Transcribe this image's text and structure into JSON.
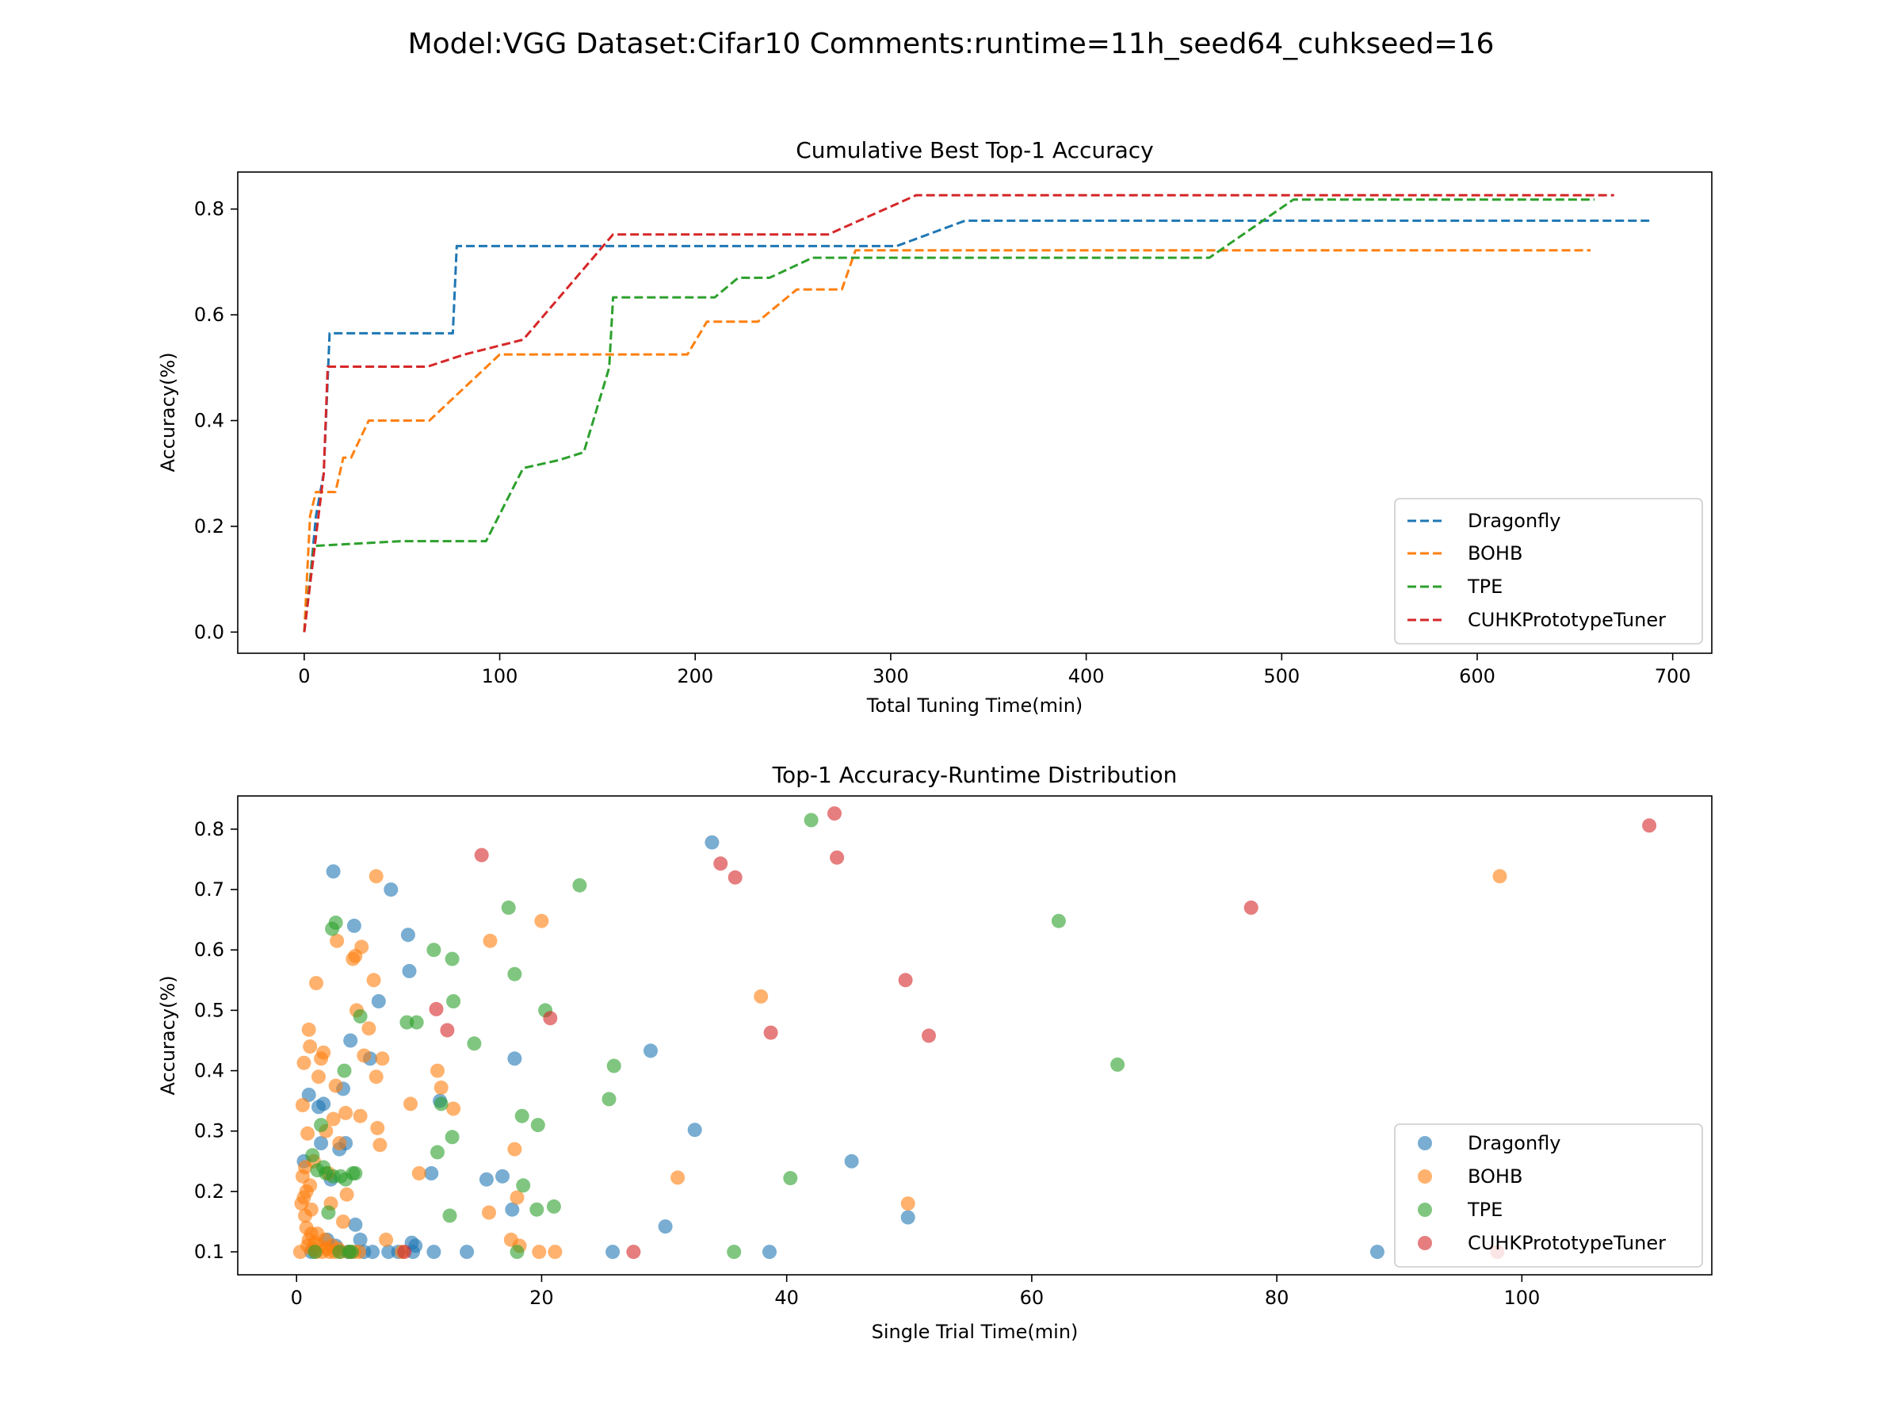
{
  "figure": {
    "suptitle": "Model:VGG Dataset:Cifar10 Comments:runtime=11h_seed64_cuhkseed=16"
  },
  "colors": {
    "Dragonfly": "#1f77b4",
    "BOHB": "#ff7f0e",
    "TPE": "#2ca02c",
    "CUHKPrototypeTuner": "#d62728"
  },
  "chart_data": [
    {
      "type": "line",
      "title": "Cumulative Best Top-1 Accuracy",
      "xlabel": "Total Tuning Time(min)",
      "ylabel": "Accuracy(%)",
      "xlim": [
        -34,
        720
      ],
      "ylim": [
        -0.04,
        0.87
      ],
      "xticks": [
        0,
        100,
        200,
        300,
        400,
        500,
        600,
        700
      ],
      "yticks": [
        0.0,
        0.2,
        0.4,
        0.6,
        0.8
      ],
      "grid": false,
      "legend": "lower-right",
      "line_style": "dashed",
      "series": [
        {
          "name": "Dragonfly",
          "points": [
            [
              0,
              0
            ],
            [
              3,
              0.1
            ],
            [
              6,
              0.22
            ],
            [
              10,
              0.3
            ],
            [
              13,
              0.565
            ],
            [
              76,
              0.565
            ],
            [
              78,
              0.73
            ],
            [
              303,
              0.73
            ],
            [
              338,
              0.778
            ],
            [
              688,
              0.778
            ]
          ]
        },
        {
          "name": "BOHB",
          "points": [
            [
              0,
              0
            ],
            [
              3,
              0.22
            ],
            [
              6,
              0.265
            ],
            [
              16,
              0.265
            ],
            [
              20,
              0.33
            ],
            [
              24,
              0.33
            ],
            [
              33,
              0.4
            ],
            [
              64,
              0.4
            ],
            [
              100,
              0.525
            ],
            [
              196,
              0.525
            ],
            [
              206,
              0.587
            ],
            [
              232,
              0.587
            ],
            [
              252,
              0.648
            ],
            [
              275,
              0.648
            ],
            [
              282,
              0.722
            ],
            [
              658,
              0.722
            ]
          ]
        },
        {
          "name": "TPE",
          "points": [
            [
              0,
              0
            ],
            [
              5,
              0.163
            ],
            [
              50,
              0.172
            ],
            [
              93,
              0.172
            ],
            [
              112,
              0.31
            ],
            [
              130,
              0.325
            ],
            [
              143,
              0.34
            ],
            [
              156,
              0.5
            ],
            [
              158,
              0.633
            ],
            [
              210,
              0.633
            ],
            [
              222,
              0.67
            ],
            [
              238,
              0.67
            ],
            [
              260,
              0.708
            ],
            [
              463,
              0.708
            ],
            [
              506,
              0.818
            ],
            [
              660,
              0.818
            ]
          ]
        },
        {
          "name": "CUHKPrototypeTuner",
          "points": [
            [
              0,
              0
            ],
            [
              10,
              0.3
            ],
            [
              12,
              0.502
            ],
            [
              63,
              0.502
            ],
            [
              82,
              0.525
            ],
            [
              112,
              0.553
            ],
            [
              158,
              0.752
            ],
            [
              268,
              0.752
            ],
            [
              313,
              0.826
            ],
            [
              670,
              0.826
            ]
          ]
        }
      ]
    },
    {
      "type": "scatter",
      "title": "Top-1 Accuracy-Runtime Distribution",
      "xlabel": "Single Trial Time(min)",
      "ylabel": "Accuracy(%)",
      "xlim": [
        -4.8,
        115.5
      ],
      "ylim": [
        0.062,
        0.855
      ],
      "xticks": [
        0,
        20,
        40,
        60,
        80,
        100
      ],
      "yticks": [
        0.1,
        0.2,
        0.3,
        0.4,
        0.5,
        0.6,
        0.7,
        0.8
      ],
      "grid": false,
      "legend": "lower-right",
      "series": [
        {
          "name": "Dragonfly",
          "points": [
            [
              0.6,
              0.25
            ],
            [
              1.0,
              0.36
            ],
            [
              1.8,
              0.34
            ],
            [
              2.0,
              0.28
            ],
            [
              2.2,
              0.345
            ],
            [
              2.8,
              0.22
            ],
            [
              3.0,
              0.73
            ],
            [
              3.5,
              0.27
            ],
            [
              3.8,
              0.37
            ],
            [
              4.0,
              0.28
            ],
            [
              4.4,
              0.45
            ],
            [
              4.7,
              0.64
            ],
            [
              4.8,
              0.145
            ],
            [
              5.2,
              0.12
            ],
            [
              5.5,
              0.1
            ],
            [
              6.0,
              0.42
            ],
            [
              6.2,
              0.1
            ],
            [
              6.7,
              0.515
            ],
            [
              7.5,
              0.1
            ],
            [
              7.7,
              0.7
            ],
            [
              9.1,
              0.625
            ],
            [
              9.2,
              0.565
            ],
            [
              9.4,
              0.115
            ],
            [
              9.5,
              0.1
            ],
            [
              9.7,
              0.11
            ],
            [
              11.0,
              0.23
            ],
            [
              11.2,
              0.1
            ],
            [
              11.7,
              0.35
            ],
            [
              13.9,
              0.1
            ],
            [
              15.5,
              0.22
            ],
            [
              16.8,
              0.225
            ],
            [
              17.6,
              0.17
            ],
            [
              17.8,
              0.42
            ],
            [
              25.8,
              0.1
            ],
            [
              28.9,
              0.433
            ],
            [
              30.1,
              0.142
            ],
            [
              32.5,
              0.302
            ],
            [
              33.9,
              0.778
            ],
            [
              38.6,
              0.1
            ],
            [
              45.3,
              0.25
            ],
            [
              49.9,
              0.157
            ],
            [
              88.2,
              0.1
            ],
            [
              1.2,
              0.1
            ],
            [
              2.5,
              0.12
            ],
            [
              3.2,
              0.11
            ],
            [
              4.2,
              0.1
            ],
            [
              8.3,
              0.1
            ]
          ]
        },
        {
          "name": "BOHB",
          "points": [
            [
              0.5,
              0.343
            ],
            [
              0.6,
              0.413
            ],
            [
              0.7,
              0.24
            ],
            [
              0.8,
              0.2
            ],
            [
              0.9,
              0.296
            ],
            [
              1.0,
              0.468
            ],
            [
              1.1,
              0.44
            ],
            [
              1.2,
              0.13
            ],
            [
              1.4,
              0.25
            ],
            [
              1.6,
              0.545
            ],
            [
              1.8,
              0.39
            ],
            [
              2.0,
              0.42
            ],
            [
              2.2,
              0.43
            ],
            [
              2.4,
              0.3
            ],
            [
              2.6,
              0.23
            ],
            [
              2.8,
              0.18
            ],
            [
              3.0,
              0.32
            ],
            [
              3.2,
              0.375
            ],
            [
              3.3,
              0.615
            ],
            [
              3.5,
              0.28
            ],
            [
              3.8,
              0.15
            ],
            [
              4.0,
              0.33
            ],
            [
              4.1,
              0.195
            ],
            [
              4.6,
              0.585
            ],
            [
              4.8,
              0.59
            ],
            [
              4.9,
              0.5
            ],
            [
              5.2,
              0.325
            ],
            [
              5.3,
              0.605
            ],
            [
              5.5,
              0.425
            ],
            [
              5.9,
              0.47
            ],
            [
              6.3,
              0.55
            ],
            [
              6.5,
              0.39
            ],
            [
              6.6,
              0.305
            ],
            [
              6.8,
              0.277
            ],
            [
              7.0,
              0.42
            ],
            [
              7.3,
              0.12
            ],
            [
              6.5,
              0.722
            ],
            [
              8.6,
              0.1
            ],
            [
              9.3,
              0.345
            ],
            [
              10.0,
              0.23
            ],
            [
              11.5,
              0.4
            ],
            [
              11.8,
              0.372
            ],
            [
              12.8,
              0.337
            ],
            [
              15.7,
              0.165
            ],
            [
              15.8,
              0.615
            ],
            [
              17.5,
              0.12
            ],
            [
              17.8,
              0.27
            ],
            [
              18.0,
              0.19
            ],
            [
              18.2,
              0.11
            ],
            [
              19.8,
              0.1
            ],
            [
              20.0,
              0.648
            ],
            [
              21.1,
              0.1
            ],
            [
              31.1,
              0.223
            ],
            [
              37.9,
              0.523
            ],
            [
              49.9,
              0.18
            ],
            [
              98.2,
              0.722
            ],
            [
              0.3,
              0.1
            ],
            [
              0.4,
              0.18
            ],
            [
              0.5,
              0.225
            ],
            [
              0.6,
              0.19
            ],
            [
              0.7,
              0.16
            ],
            [
              0.8,
              0.14
            ],
            [
              0.9,
              0.11
            ],
            [
              1.0,
              0.12
            ],
            [
              1.1,
              0.21
            ],
            [
              1.2,
              0.17
            ],
            [
              1.3,
              0.105
            ],
            [
              1.5,
              0.115
            ],
            [
              1.6,
              0.1
            ],
            [
              1.7,
              0.13
            ],
            [
              1.9,
              0.11
            ],
            [
              2.1,
              0.1
            ],
            [
              2.3,
              0.12
            ],
            [
              2.5,
              0.105
            ],
            [
              2.7,
              0.1
            ],
            [
              2.9,
              0.11
            ],
            [
              3.1,
              0.1
            ],
            [
              3.4,
              0.105
            ],
            [
              3.6,
              0.1
            ],
            [
              4.3,
              0.1
            ],
            [
              4.7,
              0.1
            ],
            [
              5.1,
              0.1
            ]
          ]
        },
        {
          "name": "TPE",
          "points": [
            [
              1.3,
              0.26
            ],
            [
              1.7,
              0.235
            ],
            [
              2.0,
              0.31
            ],
            [
              2.2,
              0.24
            ],
            [
              2.4,
              0.23
            ],
            [
              2.6,
              0.165
            ],
            [
              2.9,
              0.635
            ],
            [
              3.0,
              0.225
            ],
            [
              3.2,
              0.645
            ],
            [
              3.6,
              0.225
            ],
            [
              3.9,
              0.4
            ],
            [
              4.0,
              0.22
            ],
            [
              4.3,
              0.1
            ],
            [
              4.6,
              0.23
            ],
            [
              4.8,
              0.23
            ],
            [
              5.2,
              0.49
            ],
            [
              9.0,
              0.48
            ],
            [
              9.8,
              0.48
            ],
            [
              11.2,
              0.6
            ],
            [
              11.5,
              0.265
            ],
            [
              11.8,
              0.345
            ],
            [
              12.5,
              0.16
            ],
            [
              12.7,
              0.585
            ],
            [
              12.8,
              0.515
            ],
            [
              12.7,
              0.29
            ],
            [
              14.5,
              0.445
            ],
            [
              17.3,
              0.67
            ],
            [
              17.8,
              0.56
            ],
            [
              18.0,
              0.1
            ],
            [
              18.4,
              0.325
            ],
            [
              18.5,
              0.21
            ],
            [
              19.6,
              0.17
            ],
            [
              19.7,
              0.31
            ],
            [
              20.3,
              0.5
            ],
            [
              21.0,
              0.175
            ],
            [
              23.1,
              0.707
            ],
            [
              25.5,
              0.353
            ],
            [
              25.9,
              0.408
            ],
            [
              35.7,
              0.1
            ],
            [
              40.3,
              0.222
            ],
            [
              42.0,
              0.815
            ],
            [
              62.2,
              0.648
            ],
            [
              67.0,
              0.41
            ],
            [
              1.5,
              0.1
            ],
            [
              3.5,
              0.1
            ],
            [
              4.5,
              0.1
            ]
          ]
        },
        {
          "name": "CUHKPrototypeTuner",
          "points": [
            [
              8.8,
              0.1
            ],
            [
              11.4,
              0.502
            ],
            [
              12.3,
              0.467
            ],
            [
              15.1,
              0.757
            ],
            [
              20.7,
              0.487
            ],
            [
              27.5,
              0.1
            ],
            [
              34.6,
              0.743
            ],
            [
              35.8,
              0.72
            ],
            [
              38.7,
              0.463
            ],
            [
              43.9,
              0.826
            ],
            [
              44.1,
              0.753
            ],
            [
              49.7,
              0.55
            ],
            [
              51.6,
              0.458
            ],
            [
              77.9,
              0.67
            ],
            [
              98.0,
              0.1
            ],
            [
              110.4,
              0.806
            ]
          ]
        }
      ]
    }
  ]
}
